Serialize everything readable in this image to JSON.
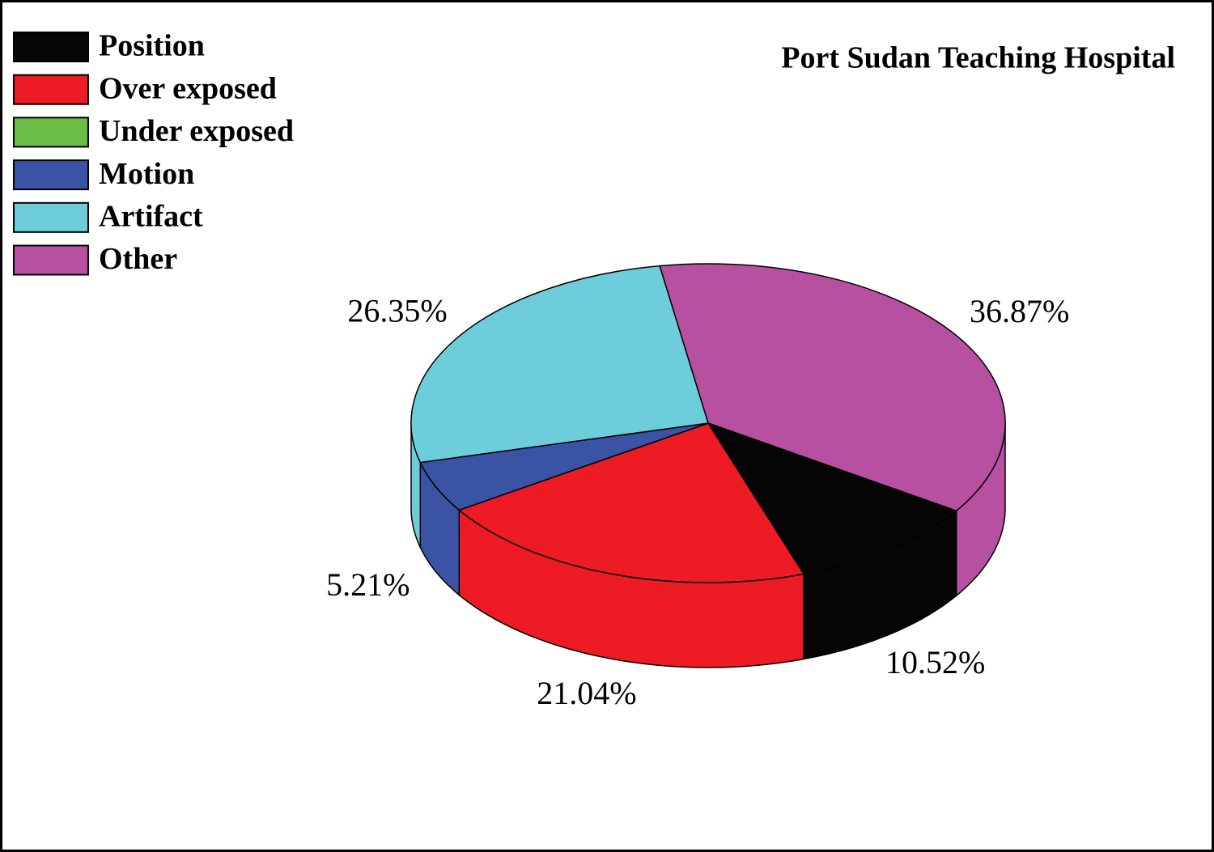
{
  "chart_data": {
    "type": "pie3d",
    "title": "Port Sudan Teaching Hospital",
    "categories": [
      "Position",
      "Over exposed",
      "Under exposed",
      "Motion",
      "Artifact",
      "Other"
    ],
    "values": [
      10.52,
      21.04,
      0,
      5.21,
      26.35,
      36.87
    ],
    "value_labels": [
      "10.52%",
      "21.04%",
      null,
      "5.21%",
      "26.35%",
      "36.87%"
    ],
    "colors": [
      "#050505",
      "#ed1c24",
      "#6abd45",
      "#3a53a4",
      "#6dcdda",
      "#b750a0"
    ],
    "legend": "top-left"
  }
}
